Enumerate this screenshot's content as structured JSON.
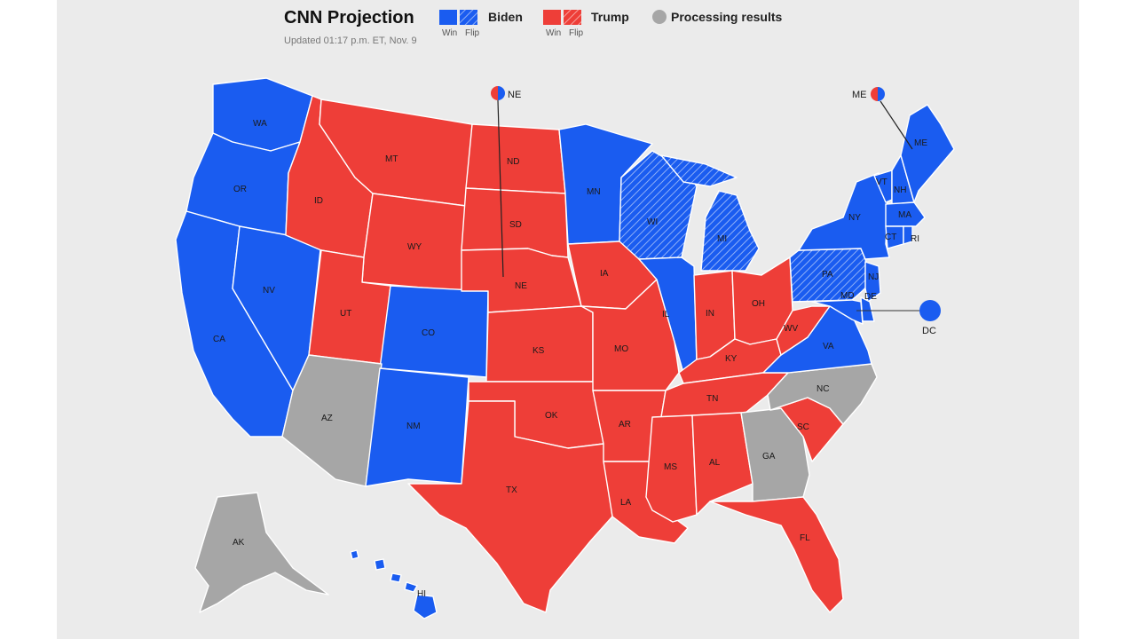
{
  "header": {
    "title": "CNN Projection",
    "updated": "Updated 01:17 p.m. ET, Nov. 9"
  },
  "legend": {
    "biden": {
      "name": "Biden",
      "win": "Win",
      "flip": "Flip",
      "color": "#1a5cf0"
    },
    "trump": {
      "name": "Trump",
      "win": "Win",
      "flip": "Flip",
      "color": "#ee3e38"
    },
    "processing": {
      "name": "Processing results",
      "color": "#a6a6a6"
    }
  },
  "states": {
    "WA": "WA",
    "OR": "OR",
    "CA": "CA",
    "NV": "NV",
    "ID": "ID",
    "MT": "MT",
    "WY": "WY",
    "UT": "UT",
    "CO": "CO",
    "AZ": "AZ",
    "NM": "NM",
    "ND": "ND",
    "SD": "SD",
    "NE": "NE",
    "KS": "KS",
    "OK": "OK",
    "TX": "TX",
    "MN": "MN",
    "IA": "IA",
    "MO": "MO",
    "AR": "AR",
    "LA": "LA",
    "WI": "WI",
    "IL": "IL",
    "MI": "MI",
    "IN": "IN",
    "OH": "OH",
    "KY": "KY",
    "TN": "TN",
    "MS": "MS",
    "AL": "AL",
    "GA": "GA",
    "FL": "FL",
    "SC": "SC",
    "NC": "NC",
    "VA": "VA",
    "WV": "WV",
    "PA": "PA",
    "NY": "NY",
    "VT": "VT",
    "NH": "NH",
    "ME": "ME",
    "MA": "MA",
    "CT": "CT",
    "RI": "RI",
    "NJ": "NJ",
    "DE": "DE",
    "MD": "MD",
    "AK": "AK",
    "HI": "HI",
    "DC": "DC",
    "NE_callout": "NE",
    "ME_callout": "ME"
  }
}
